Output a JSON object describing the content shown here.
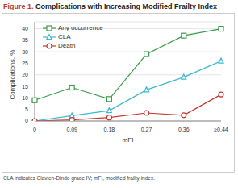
{
  "chart_data": {
    "type": "line",
    "title": "Figure 1. Complications with Increasing Modified Frailty Index",
    "footnote": "CLA indicates Clavien-Dindo grade IV; mFI, modified frailty index.",
    "x_label": "mFI",
    "y_label": "Complications, %",
    "categories": [
      "0",
      "0.09",
      "0.18",
      "0.27",
      "0.36",
      "≥0.44"
    ],
    "series": [
      {
        "name": "Any occurrence",
        "color": "#3a9d4a",
        "marker": "square",
        "values": [
          9,
          14.5,
          9.5,
          29,
          37,
          40
        ]
      },
      {
        "name": "CLA",
        "color": "#3bb8d3",
        "marker": "triangle",
        "values": [
          0,
          2.3,
          4.5,
          13.5,
          19,
          26
        ]
      },
      {
        "name": "Death",
        "color": "#c8372d",
        "marker": "circle",
        "values": [
          0,
          0.5,
          1.5,
          3.5,
          2.5,
          11.5
        ]
      }
    ],
    "ylim": [
      0,
      43
    ],
    "yticks": [
      0,
      5,
      10,
      15,
      20,
      25,
      30,
      35,
      40
    ],
    "grid": true,
    "legend": "upper left"
  }
}
